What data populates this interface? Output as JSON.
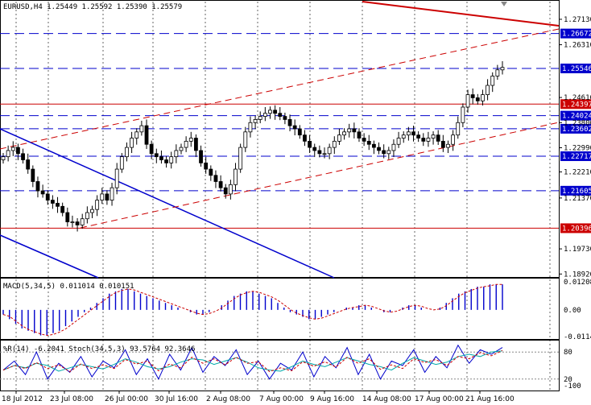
{
  "chart_data": {
    "type": "candlestick",
    "title": "EURUSD,H4  1.25449 1.25592 1.25390 1.25579",
    "symbol": "EURUSD,H4",
    "ohlc_last": [
      "1.25449",
      "1.25592",
      "1.25390",
      "1.25579"
    ],
    "y_range": [
      1.1885,
      1.277
    ],
    "y_ticks": [
      "1.27130",
      "1.26310",
      "1.25546",
      "1.24610",
      "1.24397",
      "1.23800",
      "1.22990",
      "1.22210",
      "1.21370",
      "1.20550",
      "1.19730",
      "1.18920"
    ],
    "horizontal_levels": [
      {
        "label": "1.26672",
        "value": 1.26672,
        "color": "#0000cc",
        "style": "dash"
      },
      {
        "label": "1.25546",
        "value": 1.25546,
        "color": "#0000cc",
        "style": "dash"
      },
      {
        "label": "1.24397",
        "value": 1.24397,
        "color": "#cc0000",
        "style": "solid"
      },
      {
        "label": "1.24024",
        "value": 1.24024,
        "color": "#0000cc",
        "style": "dash"
      },
      {
        "label": "1.23602",
        "value": 1.23602,
        "color": "#0000cc",
        "style": "dash"
      },
      {
        "label": "1.22717",
        "value": 1.22717,
        "color": "#0000cc",
        "style": "dash"
      },
      {
        "label": "1.21605",
        "value": 1.21605,
        "color": "#0000cc",
        "style": "dash"
      },
      {
        "label": "1.20396",
        "value": 1.20396,
        "color": "#cc0000",
        "style": "solid"
      }
    ],
    "x_labels": [
      "18 Jul 2012",
      "23 Jul 08:00",
      "26 Jul 00:00",
      "30 Jul 16:00",
      "2 Aug 08:00",
      "7 Aug 00:00",
      "9 Aug 16:00",
      "14 Aug 08:00",
      "17 Aug 00:00",
      "21 Aug 16:00"
    ],
    "close_path": [
      1.227,
      1.229,
      1.23,
      1.228,
      1.226,
      1.223,
      1.219,
      1.216,
      1.215,
      1.213,
      1.212,
      1.211,
      1.209,
      1.206,
      1.206,
      1.205,
      1.207,
      1.209,
      1.21,
      1.213,
      1.215,
      1.213,
      1.217,
      1.223,
      1.227,
      1.23,
      1.233,
      1.235,
      1.237,
      1.231,
      1.228,
      1.227,
      1.226,
      1.225,
      1.227,
      1.229,
      1.23,
      1.232,
      1.233,
      1.229,
      1.225,
      1.223,
      1.221,
      1.219,
      1.217,
      1.215,
      1.218,
      1.223,
      1.23,
      1.235,
      1.238,
      1.239,
      1.24,
      1.241,
      1.242,
      1.241,
      1.24,
      1.239,
      1.237,
      1.236,
      1.234,
      1.232,
      1.23,
      1.229,
      1.228,
      1.228,
      1.23,
      1.232,
      1.234,
      1.235,
      1.236,
      1.235,
      1.233,
      1.232,
      1.231,
      1.23,
      1.229,
      1.228,
      1.229,
      1.231,
      1.233,
      1.234,
      1.235,
      1.234,
      1.233,
      1.232,
      1.233,
      1.234,
      1.232,
      1.23,
      1.231,
      1.234,
      1.238,
      1.243,
      1.247,
      1.246,
      1.245,
      1.247,
      1.25,
      1.253,
      1.255,
      1.2558
    ],
    "macd": {
      "label": "MACD(5,34,5) 0.011014 0.010151",
      "ticks": [
        "0.01208",
        "0.00",
        "-0.01147"
      ],
      "hist": [
        -0.002,
        -0.004,
        -0.006,
        -0.008,
        -0.009,
        -0.01,
        -0.011,
        -0.011,
        -0.01,
        -0.009,
        -0.007,
        -0.005,
        -0.003,
        -0.001,
        0.001,
        0.003,
        0.005,
        0.007,
        0.008,
        0.009,
        0.009,
        0.008,
        0.007,
        0.006,
        0.005,
        0.004,
        0.003,
        0.002,
        0.001,
        0.0,
        -0.001,
        -0.002,
        -0.002,
        -0.001,
        0.0,
        0.002,
        0.004,
        0.006,
        0.007,
        0.008,
        0.008,
        0.007,
        0.006,
        0.005,
        0.003,
        0.001,
        -0.001,
        -0.002,
        -0.003,
        -0.004,
        -0.004,
        -0.003,
        -0.002,
        -0.001,
        0.0,
        0.001,
        0.001,
        0.002,
        0.002,
        0.001,
        0.0,
        -0.001,
        -0.001,
        0.0,
        0.001,
        0.002,
        0.002,
        0.001,
        0.0,
        0.0,
        0.001,
        0.003,
        0.005,
        0.007,
        0.008,
        0.009,
        0.01,
        0.01,
        0.011,
        0.011,
        0.011
      ]
    },
    "stoch": {
      "label": "%R(14) -6.2041  Stoch(34,5,3) 93.5764 92.3646",
      "ticks": [
        "80",
        "20",
        "-100"
      ],
      "values": [
        40,
        60,
        30,
        80,
        20,
        55,
        35,
        70,
        25,
        60,
        45,
        85,
        30,
        65,
        20,
        75,
        40,
        90,
        35,
        70,
        50,
        85,
        30,
        60,
        20,
        55,
        40,
        80,
        25,
        70,
        45,
        90,
        30,
        75,
        20,
        60,
        50,
        85,
        35,
        70,
        45,
        95,
        55,
        85,
        75,
        90
      ]
    }
  }
}
